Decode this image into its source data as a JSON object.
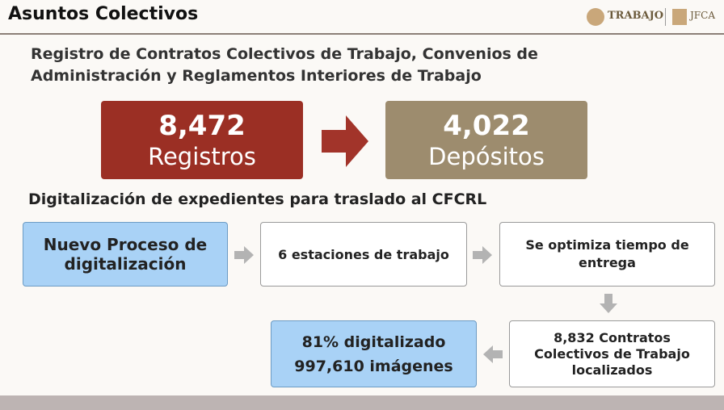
{
  "header": {
    "title": "Asuntos Colectivos",
    "logos": [
      "TRABAJO",
      "JFCA"
    ]
  },
  "subtitle": [
    "Registro de Contratos Colectivos de Trabajo, Convenios de",
    "Administración y Reglamentos Interiores de Trabajo"
  ],
  "stats": [
    {
      "number": "8,472",
      "label": "Registros"
    },
    {
      "number": "4,022",
      "label": "Depósitos"
    }
  ],
  "section_title": "Digitalización de expedientes para traslado al CFCRL",
  "steps": [
    {
      "lines": [
        "Nuevo Proceso de",
        "digitalización"
      ]
    },
    {
      "lines": [
        "6 estaciones de trabajo"
      ]
    },
    {
      "lines": [
        "Se optimiza tiempo de",
        "entrega"
      ]
    },
    {
      "lines": [
        "8,832 Contratos",
        "Colectivos de Trabajo",
        "localizados"
      ]
    },
    {
      "lines": [
        "81% digitalizado",
        "997,610 imágenes"
      ]
    }
  ]
}
